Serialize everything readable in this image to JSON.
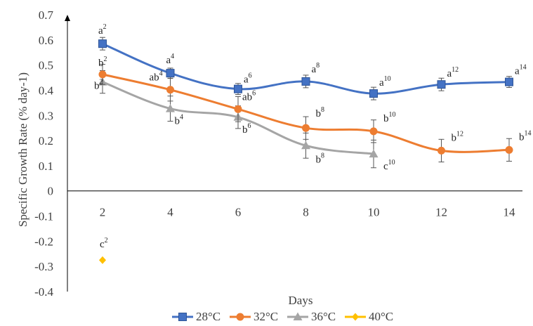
{
  "chart_data": {
    "type": "line",
    "xlabel": "Days",
    "ylabel": "Specific Growth Rate (% day-1)",
    "x": [
      2,
      4,
      6,
      8,
      10,
      12,
      14
    ],
    "ylim": [
      -0.4,
      0.7
    ],
    "yticks": [
      "0.7",
      "0.6",
      "0.5",
      "0.4",
      "0.3",
      "0.2",
      "0.1",
      "0",
      "-0.1",
      "-0.2",
      "-0.3",
      "-0.4"
    ],
    "xticks": [
      "2",
      "4",
      "6",
      "8",
      "10",
      "12",
      "14"
    ],
    "legend_position": "bottom",
    "grid": false,
    "series": [
      {
        "name": "28°C",
        "color": "#4472C4",
        "marker": "square",
        "x": [
          2,
          4,
          6,
          8,
          10,
          12,
          14
        ],
        "values": [
          0.585,
          0.468,
          0.405,
          0.435,
          0.387,
          0.423,
          0.433
        ],
        "errors": [
          0.025,
          0.02,
          0.022,
          0.025,
          0.025,
          0.025,
          0.022
        ],
        "labels": [
          [
            "a",
            "2"
          ],
          [
            "a",
            "4"
          ],
          [
            "a",
            "6"
          ],
          [
            "a",
            "8"
          ],
          [
            "a",
            "10"
          ],
          [
            "a",
            "12"
          ],
          [
            "a",
            "14"
          ]
        ]
      },
      {
        "name": "32°C",
        "color": "#ED7D31",
        "marker": "circle",
        "x": [
          2,
          4,
          6,
          8,
          10,
          12,
          14
        ],
        "values": [
          0.463,
          0.402,
          0.325,
          0.25,
          0.237,
          0.16,
          0.163
        ],
        "errors": [
          0.04,
          0.045,
          0.05,
          0.045,
          0.045,
          0.045,
          0.045
        ],
        "labels": [
          [
            "b",
            "2"
          ],
          [
            "ab",
            "4"
          ],
          [
            "ab",
            "6"
          ],
          [
            "b",
            "8"
          ],
          [
            "b",
            "10"
          ],
          [
            "b",
            "12"
          ],
          [
            "b",
            "14"
          ]
        ]
      },
      {
        "name": "36°C",
        "color": "#A5A5A5",
        "marker": "triangle",
        "x": [
          2,
          4,
          6,
          8,
          10
        ],
        "values": [
          0.433,
          0.327,
          0.293,
          0.18,
          0.147
        ],
        "errors": [
          0.045,
          0.05,
          0.045,
          0.05,
          0.055
        ],
        "labels": [
          [
            "b",
            "2"
          ],
          [
            "b",
            "4"
          ],
          [
            "b",
            "6"
          ],
          [
            "b",
            "8"
          ],
          [
            "c",
            "10"
          ]
        ]
      },
      {
        "name": "40°C",
        "color": "#FFC000",
        "marker": "diamond",
        "x": [
          2
        ],
        "values": [
          -0.275
        ],
        "errors": [
          0
        ],
        "labels": [
          [
            "c",
            "2"
          ]
        ]
      }
    ]
  }
}
